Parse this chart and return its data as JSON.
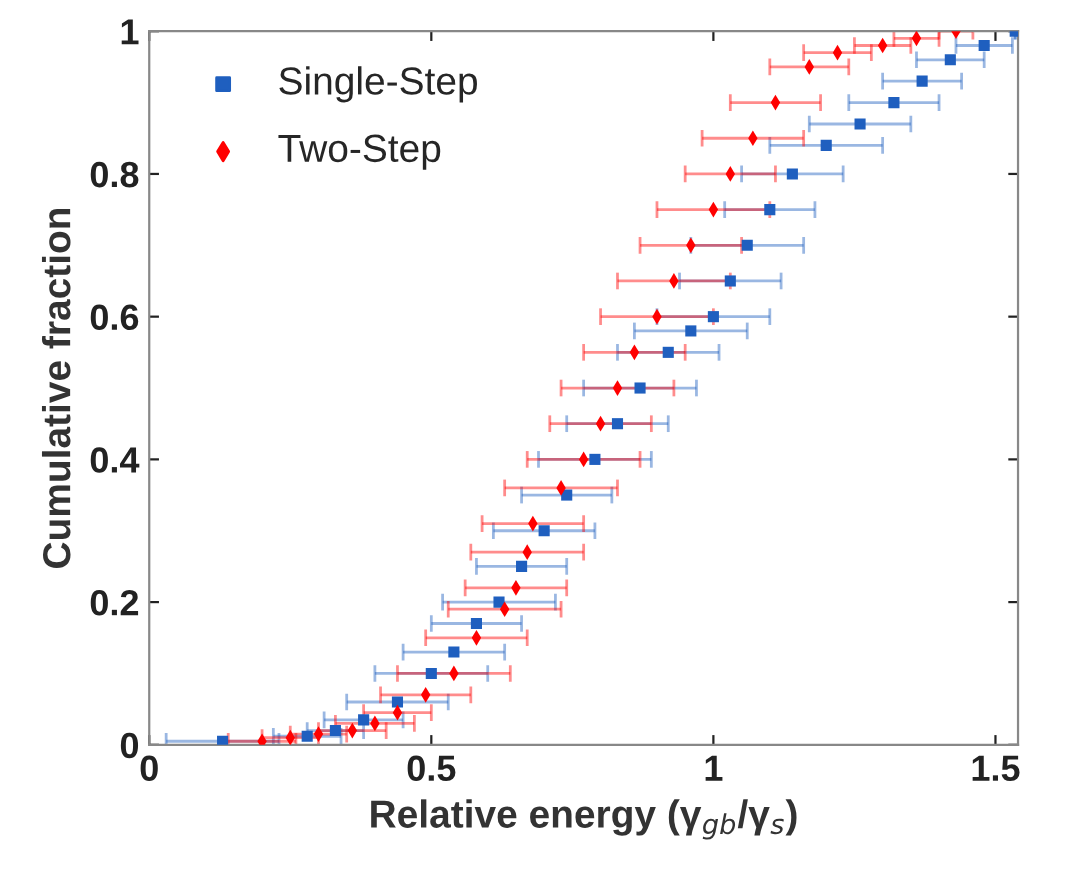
{
  "chart_data": {
    "type": "scatter",
    "xlabel": "Relative energy (γ$_{gb}$/γ$_{s}$)",
    "ylabel": "Cumulative fraction",
    "xlim": [
      0,
      1.54
    ],
    "xticks": [
      0,
      0.5,
      1,
      1.5
    ],
    "ylim": [
      0,
      1
    ],
    "yticks": [
      0,
      0.2,
      0.4,
      0.6,
      0.8,
      1
    ],
    "grid": false,
    "legend": "top left",
    "series": [
      {
        "name": "Single-Step",
        "color": "#1f5fbf",
        "marker": "square",
        "x": [
          0.13,
          0.28,
          0.33,
          0.38,
          0.44,
          0.5,
          0.54,
          0.58,
          0.62,
          0.66,
          0.7,
          0.74,
          0.79,
          0.83,
          0.87,
          0.92,
          0.96,
          1.0,
          1.03,
          1.06,
          1.1,
          1.14,
          1.2,
          1.26,
          1.32,
          1.37,
          1.42,
          1.48,
          1.535
        ],
        "values": [
          0.005,
          0.012,
          0.02,
          0.035,
          0.06,
          0.1,
          0.13,
          0.17,
          0.2,
          0.25,
          0.3,
          0.35,
          0.4,
          0.45,
          0.5,
          0.55,
          0.58,
          0.6,
          0.65,
          0.7,
          0.75,
          0.8,
          0.84,
          0.87,
          0.9,
          0.93,
          0.96,
          0.98,
          1.0
        ],
        "xerrors": [
          0.1,
          0.06,
          0.05,
          0.07,
          0.09,
          0.1,
          0.09,
          0.08,
          0.1,
          0.08,
          0.09,
          0.08,
          0.1,
          0.09,
          0.1,
          0.09,
          0.1,
          0.1,
          0.09,
          0.1,
          0.08,
          0.09,
          0.1,
          0.09,
          0.08,
          0.07,
          0.06,
          0.05,
          0.0
        ]
      },
      {
        "name": "Two-Step",
        "color": "#ff0000",
        "marker": "diamond",
        "x": [
          0.2,
          0.25,
          0.3,
          0.36,
          0.4,
          0.44,
          0.49,
          0.54,
          0.58,
          0.63,
          0.65,
          0.67,
          0.68,
          0.73,
          0.77,
          0.8,
          0.83,
          0.86,
          0.9,
          0.93,
          0.96,
          1.0,
          1.03,
          1.07,
          1.11,
          1.17,
          1.22,
          1.3,
          1.36,
          1.43
        ],
        "values": [
          0.005,
          0.01,
          0.015,
          0.02,
          0.03,
          0.045,
          0.07,
          0.1,
          0.15,
          0.19,
          0.22,
          0.27,
          0.31,
          0.36,
          0.4,
          0.45,
          0.5,
          0.55,
          0.6,
          0.65,
          0.7,
          0.75,
          0.8,
          0.85,
          0.9,
          0.95,
          0.97,
          0.98,
          0.99,
          1.0
        ],
        "xerrors": [
          0.06,
          0.05,
          0.05,
          0.06,
          0.07,
          0.06,
          0.08,
          0.1,
          0.09,
          0.1,
          0.09,
          0.1,
          0.09,
          0.1,
          0.1,
          0.09,
          0.1,
          0.09,
          0.1,
          0.1,
          0.09,
          0.1,
          0.08,
          0.09,
          0.08,
          0.07,
          0.06,
          0.05,
          0.04,
          0.03
        ]
      }
    ]
  }
}
